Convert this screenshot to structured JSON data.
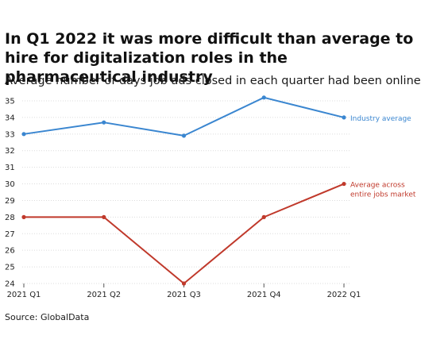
{
  "title": "In Q1 2022 it was more difficult than average to hire for digitalization roles in the pharmaceutical industry",
  "subtitle": "Average number of days job ads closed in each quarter had been online for",
  "source": "Source: GlobalData",
  "chart_data": {
    "type": "line",
    "title": "In Q1 2022 it was more difficult than average to hire for digitalization roles in the pharmaceutical industry",
    "subtitle": "Average number of days job ads closed in each quarter had been online for",
    "categories": [
      "2021 Q1",
      "2021 Q2",
      "2021 Q3",
      "2021 Q4",
      "2022 Q1"
    ],
    "ylim": [
      24,
      35
    ],
    "yticks": [
      24,
      25,
      26,
      27,
      28,
      29,
      30,
      31,
      32,
      33,
      34,
      35
    ],
    "grid": true,
    "legend": "direct labels at line ends",
    "series": [
      {
        "name": "Industry average",
        "label_lines": [
          "Industry average"
        ],
        "color": "#3a86d0",
        "values": [
          33,
          33.7,
          32.9,
          35.2,
          34
        ]
      },
      {
        "name": "Average across entire jobs market",
        "label_lines": [
          "Average across",
          "entire jobs market"
        ],
        "color": "#c0392b",
        "values": [
          28,
          28,
          24,
          28,
          30
        ]
      }
    ]
  }
}
